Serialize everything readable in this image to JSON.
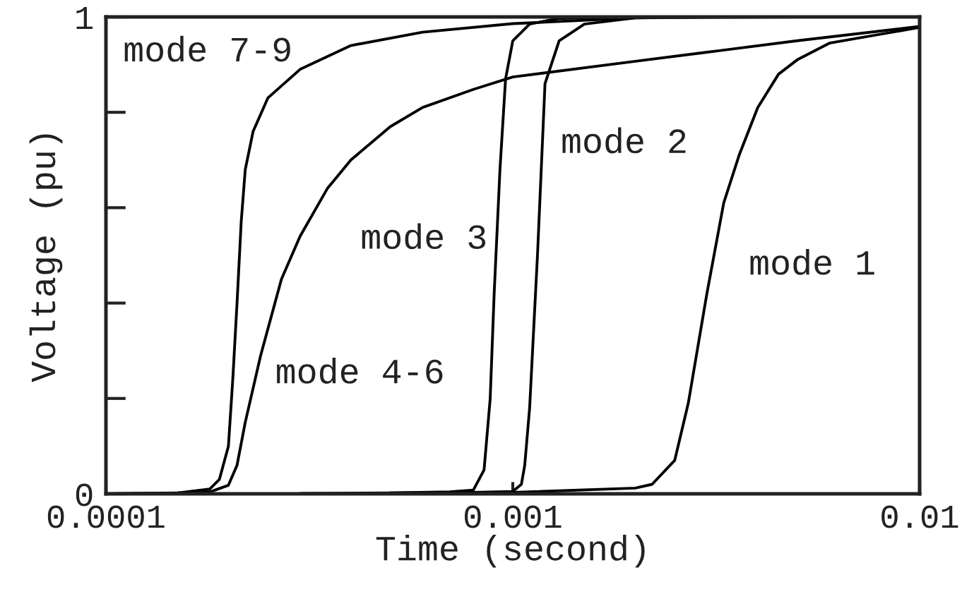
{
  "chart_data": {
    "type": "line",
    "xlabel": "Time (second)",
    "ylabel": "Voltage (pu)",
    "log": "x",
    "xlim": [
      0.0001,
      0.01
    ],
    "ylim": [
      0,
      1
    ],
    "xticks": [
      0.0001,
      0.001,
      0.01
    ],
    "yticks": [
      0,
      {
        "value": 0.2,
        "label": null
      },
      {
        "value": 0.4,
        "label": null
      },
      {
        "value": 0.6,
        "label": null
      },
      {
        "value": 0.8,
        "label": null
      },
      1
    ],
    "line_style": "solid",
    "series": [
      {
        "name": "mode 7-9",
        "color": "#000000",
        "x": [
          0.0001,
          0.00015,
          0.00018,
          0.00019,
          0.0002,
          0.000205,
          0.00021,
          0.000215,
          0.00022,
          0.00023,
          0.00025,
          0.0003,
          0.0004,
          0.0006,
          0.001,
          0.002,
          0.005
        ],
        "values": [
          0,
          0.002,
          0.01,
          0.03,
          0.1,
          0.24,
          0.4,
          0.57,
          0.68,
          0.76,
          0.83,
          0.89,
          0.94,
          0.968,
          0.986,
          0.998,
          1
        ]
      },
      {
        "name": "mode 4-6",
        "color": "#000000",
        "x": [
          0.0001,
          0.00015,
          0.00018,
          0.0002,
          0.00021,
          0.00022,
          0.00024,
          0.00027,
          0.0003,
          0.00035,
          0.0004,
          0.0005,
          0.0006,
          0.0008,
          0.001,
          0.002,
          0.003,
          0.005,
          0.01
        ],
        "values": [
          0,
          0.002,
          0.004,
          0.018,
          0.06,
          0.15,
          0.29,
          0.45,
          0.54,
          0.64,
          0.7,
          0.77,
          0.81,
          0.848,
          0.874,
          0.907,
          0.926,
          0.95,
          0.98
        ]
      },
      {
        "name": "mode 3",
        "color": "#000000",
        "x": [
          0.0003,
          0.0005,
          0.0007,
          0.0008,
          0.00085,
          0.00088,
          0.0009,
          0.00093,
          0.00096,
          0.001,
          0.0011,
          0.0013,
          0.002
        ],
        "values": [
          0.001,
          0.002,
          0.004,
          0.008,
          0.05,
          0.2,
          0.42,
          0.68,
          0.87,
          0.95,
          0.985,
          0.997,
          1
        ]
      },
      {
        "name": "mode 2",
        "color": "#000000",
        "x": [
          0.0005,
          0.0008,
          0.001,
          0.00105,
          0.00107,
          0.0011,
          0.00115,
          0.0012,
          0.0013,
          0.0015,
          0.002,
          0.003
        ],
        "values": [
          0.002,
          0.003,
          0.005,
          0.02,
          0.06,
          0.18,
          0.5,
          0.86,
          0.95,
          0.985,
          0.998,
          1
        ]
      },
      {
        "name": "mode 1",
        "color": "#000000",
        "x": [
          0.0008,
          0.001,
          0.002,
          0.0022,
          0.0025,
          0.0027,
          0.003,
          0.0033,
          0.0036,
          0.004,
          0.0045,
          0.005,
          0.006,
          0.007,
          0.01
        ],
        "values": [
          0.002,
          0.003,
          0.012,
          0.02,
          0.07,
          0.19,
          0.42,
          0.61,
          0.71,
          0.81,
          0.88,
          0.91,
          0.945,
          0.955,
          0.978
        ]
      }
    ]
  }
}
